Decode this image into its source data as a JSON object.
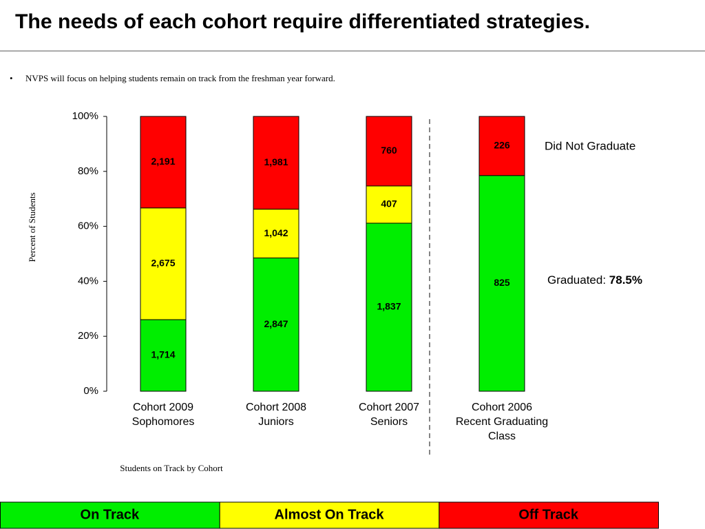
{
  "title": "The needs of each cohort require differentiated strategies.",
  "bullet": "NVPS will focus on helping students remain on track from the freshman year forward.",
  "chart_data": {
    "type": "bar",
    "stacking": "percent",
    "ylabel": "Percent of Students",
    "xlabel": "Students on Track by Cohort",
    "categories": [
      [
        "Cohort 2009",
        "Sophomores"
      ],
      [
        "Cohort 2008",
        "Juniors"
      ],
      [
        "Cohort 2007",
        "Seniors"
      ],
      [
        "Cohort 2006",
        "Recent Graduating",
        "Class"
      ]
    ],
    "series": [
      {
        "name": "On Track",
        "color": "#00ee00",
        "values": [
          1714,
          2847,
          1837,
          825
        ],
        "value_labels": [
          "1,714",
          "2,847",
          "1,837",
          "825"
        ]
      },
      {
        "name": "Almost On Track",
        "color": "#ffff00",
        "values": [
          2675,
          1042,
          407,
          null
        ],
        "value_labels": [
          "2,675",
          "1,042",
          "407",
          null
        ]
      },
      {
        "name": "Off Track",
        "color": "#ff0000",
        "values": [
          2191,
          1981,
          760,
          226
        ],
        "value_labels": [
          "2,191",
          "1,981",
          "760",
          "226"
        ]
      }
    ],
    "ylim": [
      0,
      100
    ],
    "yticks": [
      {
        "value": 0,
        "label": "0%"
      },
      {
        "value": 20,
        "label": "20%"
      },
      {
        "value": 40,
        "label": "40%"
      },
      {
        "value": 60,
        "label": "60%"
      },
      {
        "value": 80,
        "label": "80%"
      },
      {
        "value": 100,
        "label": "100%"
      }
    ],
    "annotations": {
      "did_not_graduate": "Did Not Graduate",
      "graduated": "Graduated:",
      "graduated_rate": "78.5%"
    }
  }
}
